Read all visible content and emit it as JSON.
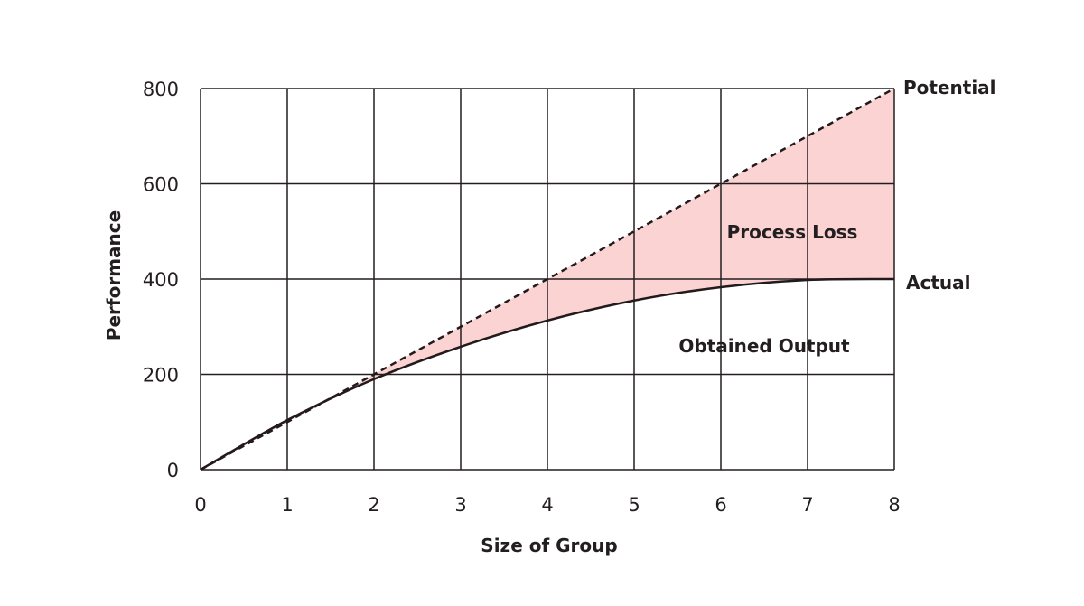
{
  "chart_data": {
    "type": "line",
    "title": "",
    "xlabel": "Size of Group",
    "ylabel": "Performance",
    "xlim": [
      0,
      8
    ],
    "ylim": [
      0,
      800
    ],
    "xticks": [
      "0",
      "1",
      "2",
      "3",
      "4",
      "5",
      "6",
      "7",
      "8"
    ],
    "yticks": [
      "0",
      "200",
      "400",
      "600",
      "800"
    ],
    "grid": true,
    "series": [
      {
        "name": "Potential",
        "style": "dashed",
        "x": [
          0,
          1,
          2,
          3,
          4,
          5,
          6,
          7,
          8
        ],
        "values": [
          0,
          100,
          200,
          300,
          400,
          500,
          600,
          700,
          800
        ]
      },
      {
        "name": "Actual",
        "style": "solid",
        "x": [
          0,
          1,
          2,
          3,
          4,
          5,
          6,
          7,
          8
        ],
        "values": [
          0,
          104,
          190,
          258,
          313,
          355,
          383,
          398,
          400
        ]
      }
    ],
    "annotations": [
      "Process Loss",
      "Obtained Output"
    ],
    "colors": {
      "fill": "#fbd3d3",
      "line": "#231a1c",
      "grid": "#231f20"
    }
  }
}
